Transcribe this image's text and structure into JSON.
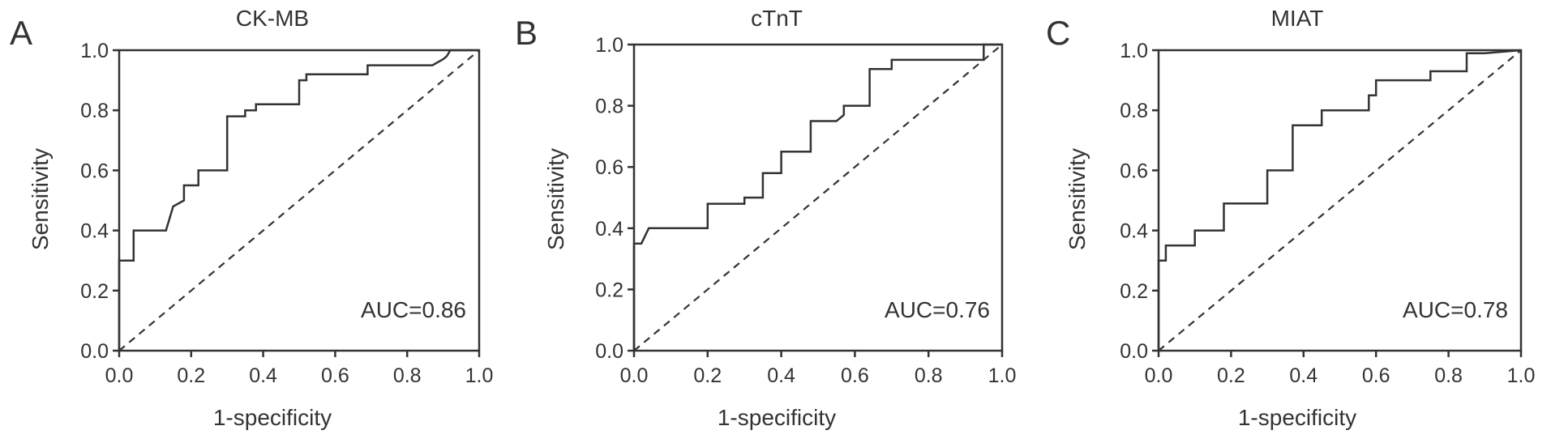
{
  "chart_data": [
    {
      "type": "line",
      "panel": "A",
      "title": "CK-MB",
      "xlabel": "1-specificity",
      "ylabel": "Sensitivity",
      "xlim": [
        0,
        1
      ],
      "ylim": [
        0,
        1
      ],
      "xticks": [
        "0.0",
        "0.2",
        "0.4",
        "0.6",
        "0.8",
        "1.0"
      ],
      "yticks": [
        "0.0",
        "0.2",
        "0.4",
        "0.6",
        "0.8",
        "1.0"
      ],
      "annotation": "AUC=0.86",
      "roc_curve": {
        "x": [
          0,
          0,
          0.04,
          0.04,
          0.13,
          0.15,
          0.18,
          0.18,
          0.22,
          0.22,
          0.3,
          0.3,
          0.35,
          0.35,
          0.38,
          0.38,
          0.5,
          0.5,
          0.52,
          0.52,
          0.69,
          0.69,
          0.87,
          0.9,
          0.91,
          0.92,
          1
        ],
        "y": [
          0,
          0.3,
          0.3,
          0.4,
          0.4,
          0.48,
          0.5,
          0.55,
          0.55,
          0.6,
          0.6,
          0.78,
          0.78,
          0.8,
          0.8,
          0.82,
          0.82,
          0.9,
          0.9,
          0.92,
          0.92,
          0.95,
          0.95,
          0.97,
          0.98,
          1,
          1
        ]
      },
      "reference_line": {
        "x": [
          0,
          1
        ],
        "y": [
          0,
          1
        ]
      },
      "grid": false
    },
    {
      "type": "line",
      "panel": "B",
      "title": "cTnT",
      "xlabel": "1-specificity",
      "ylabel": "Sensitivity",
      "xlim": [
        0,
        1
      ],
      "ylim": [
        0,
        1
      ],
      "xticks": [
        "0.0",
        "0.2",
        "0.4",
        "0.6",
        "0.8",
        "1.0"
      ],
      "yticks": [
        "0.0",
        "0.2",
        "0.4",
        "0.6",
        "0.8",
        "1.0"
      ],
      "annotation": "AUC=0.76",
      "roc_curve": {
        "x": [
          0,
          0,
          0.02,
          0.04,
          0.2,
          0.2,
          0.3,
          0.3,
          0.35,
          0.35,
          0.4,
          0.4,
          0.48,
          0.48,
          0.55,
          0.57,
          0.57,
          0.64,
          0.64,
          0.7,
          0.7,
          0.95,
          0.95,
          1
        ],
        "y": [
          0,
          0.35,
          0.35,
          0.4,
          0.4,
          0.48,
          0.48,
          0.5,
          0.5,
          0.58,
          0.58,
          0.65,
          0.65,
          0.75,
          0.75,
          0.77,
          0.8,
          0.8,
          0.92,
          0.92,
          0.95,
          0.95,
          1,
          1
        ]
      },
      "reference_line": {
        "x": [
          0,
          1
        ],
        "y": [
          0,
          1
        ]
      },
      "grid": false
    },
    {
      "type": "line",
      "panel": "C",
      "title": "MIAT",
      "xlabel": "1-specificity",
      "ylabel": "Sensitivity",
      "xlim": [
        0,
        1
      ],
      "ylim": [
        0,
        1
      ],
      "xticks": [
        "0.0",
        "0.2",
        "0.4",
        "0.6",
        "0.8",
        "1.0"
      ],
      "yticks": [
        "0.0",
        "0.2",
        "0.4",
        "0.6",
        "0.8",
        "1.0"
      ],
      "annotation": "AUC=0.78",
      "roc_curve": {
        "x": [
          0,
          0,
          0.02,
          0.02,
          0.1,
          0.1,
          0.18,
          0.18,
          0.3,
          0.3,
          0.37,
          0.37,
          0.45,
          0.45,
          0.58,
          0.58,
          0.6,
          0.6,
          0.75,
          0.75,
          0.85,
          0.85,
          0.9,
          1
        ],
        "y": [
          0,
          0.3,
          0.3,
          0.35,
          0.35,
          0.4,
          0.4,
          0.49,
          0.49,
          0.6,
          0.6,
          0.75,
          0.75,
          0.8,
          0.8,
          0.85,
          0.85,
          0.9,
          0.9,
          0.93,
          0.93,
          0.99,
          0.99,
          1
        ]
      },
      "reference_line": {
        "x": [
          0,
          1
        ],
        "y": [
          0,
          1
        ]
      },
      "grid": false
    }
  ]
}
